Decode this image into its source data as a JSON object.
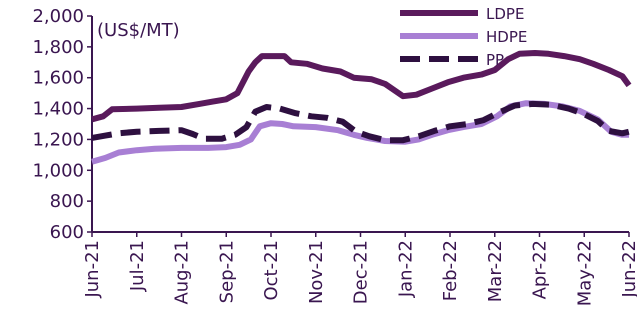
{
  "chart_data": {
    "type": "line",
    "unit_label": "(US$/MT)",
    "ylim": [
      600,
      2000
    ],
    "yticks": [
      600,
      800,
      1000,
      1200,
      1400,
      1600,
      1800,
      2000
    ],
    "ytick_labels": [
      "600",
      "800",
      "1,000",
      "1,200",
      "1,400",
      "1,600",
      "1,800",
      "2,000"
    ],
    "xticks": [
      "Jun-21",
      "Jul-21",
      "Aug-21",
      "Sep-21",
      "Oct-21",
      "Nov-21",
      "Dec-21",
      "Jan-22",
      "Feb-22",
      "Mar-22",
      "Apr-22",
      "May-22",
      "Jun-22"
    ],
    "legend_position": "top-right",
    "grid": false,
    "series": [
      {
        "name": "LDPE",
        "color": "#5a1a5c",
        "style": "solid",
        "points": [
          [
            0,
            1330
          ],
          [
            0.25,
            1350
          ],
          [
            0.45,
            1395
          ],
          [
            1,
            1400
          ],
          [
            1.5,
            1405
          ],
          [
            2,
            1410
          ],
          [
            2.4,
            1430
          ],
          [
            2.7,
            1445
          ],
          [
            3,
            1460
          ],
          [
            3.25,
            1500
          ],
          [
            3.5,
            1640
          ],
          [
            3.65,
            1700
          ],
          [
            3.8,
            1740
          ],
          [
            4.3,
            1740
          ],
          [
            4.45,
            1700
          ],
          [
            4.8,
            1690
          ],
          [
            5.15,
            1660
          ],
          [
            5.55,
            1640
          ],
          [
            5.85,
            1600
          ],
          [
            6.25,
            1590
          ],
          [
            6.55,
            1560
          ],
          [
            6.95,
            1480
          ],
          [
            7.25,
            1490
          ],
          [
            7.6,
            1530
          ],
          [
            7.95,
            1570
          ],
          [
            8.3,
            1600
          ],
          [
            8.7,
            1620
          ],
          [
            9.0,
            1650
          ],
          [
            9.3,
            1720
          ],
          [
            9.55,
            1755
          ],
          [
            9.9,
            1760
          ],
          [
            10.2,
            1755
          ],
          [
            10.55,
            1740
          ],
          [
            10.9,
            1720
          ],
          [
            11.2,
            1690
          ],
          [
            11.55,
            1650
          ],
          [
            11.85,
            1610
          ],
          [
            12,
            1550
          ]
        ]
      },
      {
        "name": "HDPE",
        "color": "#a87fd4",
        "style": "solid",
        "points": [
          [
            0,
            1055
          ],
          [
            0.3,
            1080
          ],
          [
            0.6,
            1115
          ],
          [
            1,
            1130
          ],
          [
            1.4,
            1140
          ],
          [
            2,
            1145
          ],
          [
            2.6,
            1145
          ],
          [
            3,
            1150
          ],
          [
            3.3,
            1165
          ],
          [
            3.55,
            1200
          ],
          [
            3.75,
            1285
          ],
          [
            4.0,
            1305
          ],
          [
            4.25,
            1300
          ],
          [
            4.5,
            1285
          ],
          [
            5.0,
            1280
          ],
          [
            5.5,
            1260
          ],
          [
            5.85,
            1230
          ],
          [
            6.15,
            1210
          ],
          [
            6.55,
            1190
          ],
          [
            7.0,
            1185
          ],
          [
            7.3,
            1200
          ],
          [
            7.6,
            1230
          ],
          [
            7.95,
            1260
          ],
          [
            8.3,
            1280
          ],
          [
            8.7,
            1300
          ],
          [
            9.05,
            1350
          ],
          [
            9.35,
            1415
          ],
          [
            9.7,
            1435
          ],
          [
            10.1,
            1430
          ],
          [
            10.5,
            1415
          ],
          [
            10.9,
            1385
          ],
          [
            11.3,
            1330
          ],
          [
            11.6,
            1250
          ],
          [
            11.85,
            1230
          ],
          [
            12,
            1230
          ]
        ]
      },
      {
        "name": "PP",
        "color": "#2e1040",
        "style": "dashed",
        "points": [
          [
            0,
            1210
          ],
          [
            0.3,
            1225
          ],
          [
            0.6,
            1240
          ],
          [
            1,
            1250
          ],
          [
            1.5,
            1255
          ],
          [
            2,
            1260
          ],
          [
            2.25,
            1235
          ],
          [
            2.5,
            1205
          ],
          [
            2.9,
            1205
          ],
          [
            3.2,
            1230
          ],
          [
            3.45,
            1280
          ],
          [
            3.65,
            1380
          ],
          [
            3.9,
            1410
          ],
          [
            4.2,
            1400
          ],
          [
            4.55,
            1370
          ],
          [
            4.9,
            1350
          ],
          [
            5.25,
            1340
          ],
          [
            5.6,
            1315
          ],
          [
            5.9,
            1250
          ],
          [
            6.2,
            1220
          ],
          [
            6.55,
            1195
          ],
          [
            6.95,
            1195
          ],
          [
            7.3,
            1220
          ],
          [
            7.65,
            1255
          ],
          [
            8.0,
            1285
          ],
          [
            8.4,
            1300
          ],
          [
            8.75,
            1325
          ],
          [
            9.1,
            1375
          ],
          [
            9.45,
            1420
          ],
          [
            9.85,
            1430
          ],
          [
            10.25,
            1425
          ],
          [
            10.65,
            1400
          ],
          [
            10.95,
            1370
          ],
          [
            11.3,
            1320
          ],
          [
            11.55,
            1255
          ],
          [
            11.85,
            1240
          ],
          [
            12,
            1250
          ]
        ]
      }
    ]
  }
}
